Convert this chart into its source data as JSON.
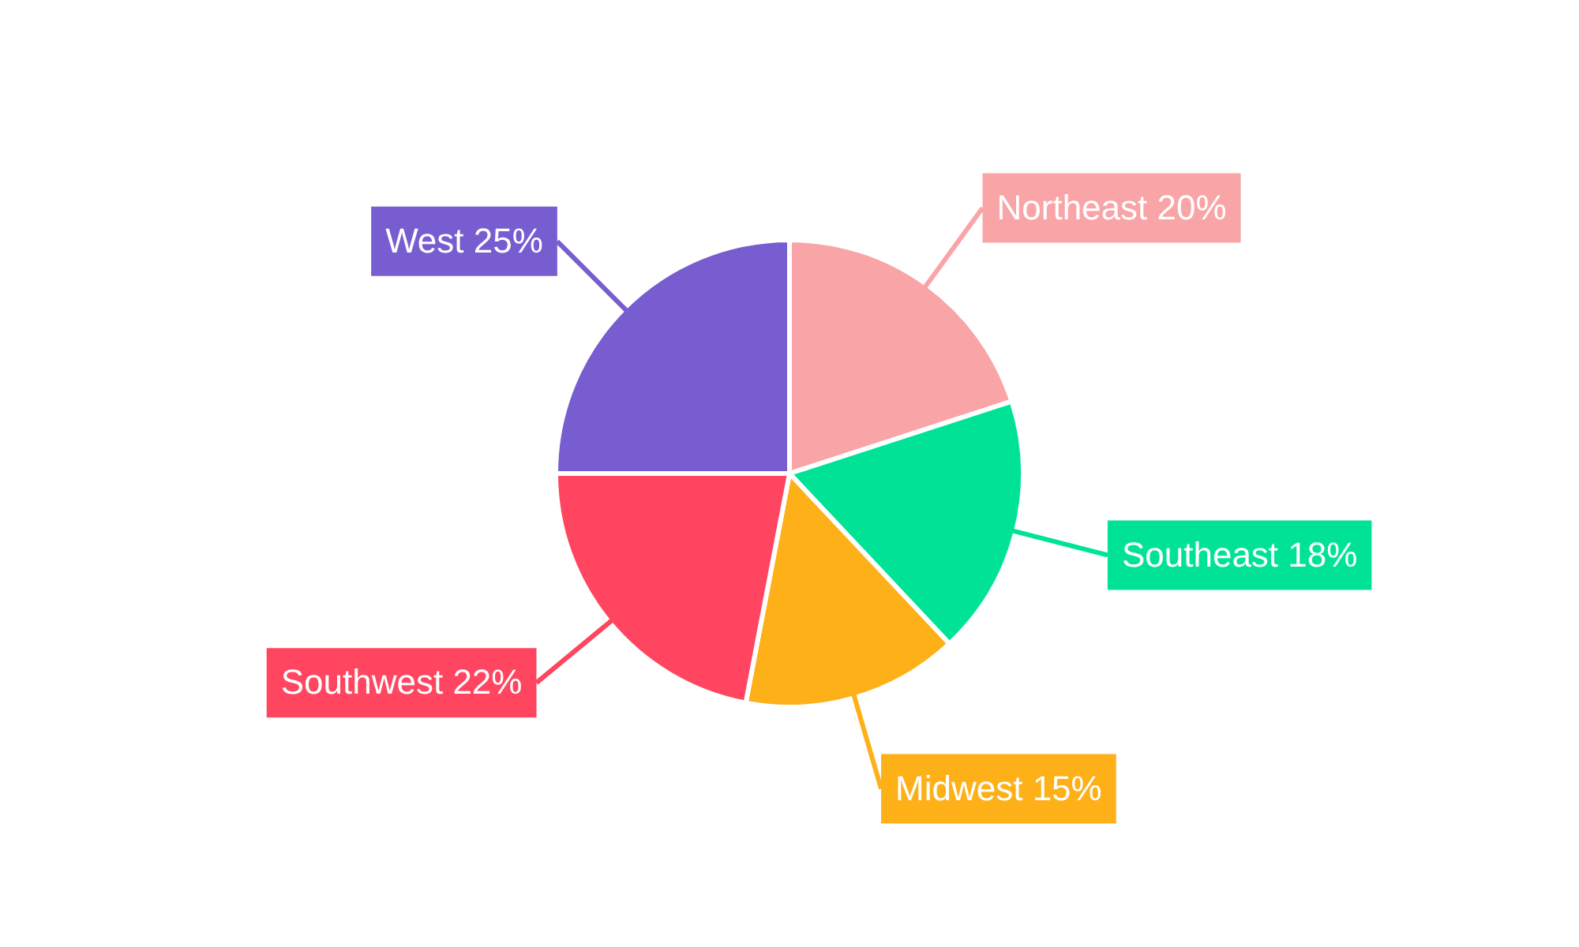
{
  "chart_data": {
    "type": "pie",
    "categories": [
      "Northeast",
      "Southeast",
      "Midwest",
      "Southwest",
      "West"
    ],
    "values": [
      20,
      18,
      15,
      22,
      25
    ],
    "colors": [
      "#f9a5a7",
      "#00e396",
      "#feb019",
      "#ff4560",
      "#775dd0"
    ],
    "value_labels": [
      "20%",
      "18%",
      "15%",
      "22%",
      "25%"
    ],
    "legend": false
  }
}
